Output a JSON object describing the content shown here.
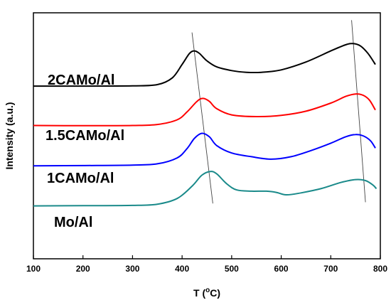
{
  "chart_data": {
    "type": "line",
    "xlabel": "T (",
    "xlabel_sup": "o",
    "xlabel_end": "C)",
    "ylabel": "Intensity (a.u.)",
    "xlim": [
      100,
      800
    ],
    "ylim": [
      0,
      1
    ],
    "xticks": [
      100,
      200,
      300,
      400,
      500,
      600,
      700,
      800
    ],
    "show_y_ticks": false,
    "grid": false,
    "legend": "none",
    "series": [
      {
        "name": "2CAMo/Al",
        "color": "#000000",
        "x": [
          100,
          200,
          300,
          350,
          380,
          400,
          415,
          425,
          435,
          450,
          470,
          500,
          530,
          560,
          600,
          650,
          700,
          730,
          745,
          760,
          775,
          790
        ],
        "y": [
          0.702,
          0.702,
          0.703,
          0.708,
          0.735,
          0.79,
          0.835,
          0.845,
          0.835,
          0.805,
          0.78,
          0.765,
          0.758,
          0.758,
          0.768,
          0.8,
          0.845,
          0.87,
          0.875,
          0.865,
          0.835,
          0.79
        ]
      },
      {
        "name": "1.5CAMo/Al",
        "color": "#ff0000",
        "x": [
          100,
          200,
          300,
          350,
          390,
          410,
          430,
          442,
          455,
          470,
          500,
          550,
          600,
          650,
          700,
          730,
          750,
          765,
          778,
          790
        ],
        "y": [
          0.542,
          0.541,
          0.542,
          0.546,
          0.565,
          0.597,
          0.64,
          0.652,
          0.64,
          0.61,
          0.585,
          0.578,
          0.583,
          0.6,
          0.633,
          0.66,
          0.67,
          0.665,
          0.645,
          0.605
        ]
      },
      {
        "name": "1CAMo/Al",
        "color": "#0000ff",
        "x": [
          100,
          200,
          300,
          350,
          390,
          410,
          425,
          440,
          455,
          470,
          500,
          540,
          580,
          620,
          660,
          700,
          730,
          750,
          765,
          780,
          790
        ],
        "y": [
          0.378,
          0.379,
          0.381,
          0.386,
          0.41,
          0.448,
          0.49,
          0.51,
          0.496,
          0.46,
          0.43,
          0.415,
          0.405,
          0.415,
          0.44,
          0.47,
          0.496,
          0.505,
          0.5,
          0.48,
          0.45
        ]
      },
      {
        "name": "Mo/Al",
        "color": "#1a8a8a",
        "x": [
          100,
          200,
          300,
          350,
          390,
          420,
          440,
          457,
          470,
          490,
          510,
          540,
          570,
          590,
          610,
          640,
          680,
          720,
          750,
          770,
          785,
          792
        ],
        "y": [
          0.215,
          0.216,
          0.217,
          0.222,
          0.245,
          0.295,
          0.34,
          0.355,
          0.345,
          0.305,
          0.28,
          0.275,
          0.275,
          0.27,
          0.26,
          0.268,
          0.285,
          0.31,
          0.322,
          0.318,
          0.3,
          0.285
        ]
      }
    ],
    "guide_lines": [
      {
        "x": [
          420,
          462
        ],
        "y": [
          0.92,
          0.225
        ]
      },
      {
        "x": [
          742,
          770
        ],
        "y": [
          0.97,
          0.23
        ]
      }
    ]
  }
}
